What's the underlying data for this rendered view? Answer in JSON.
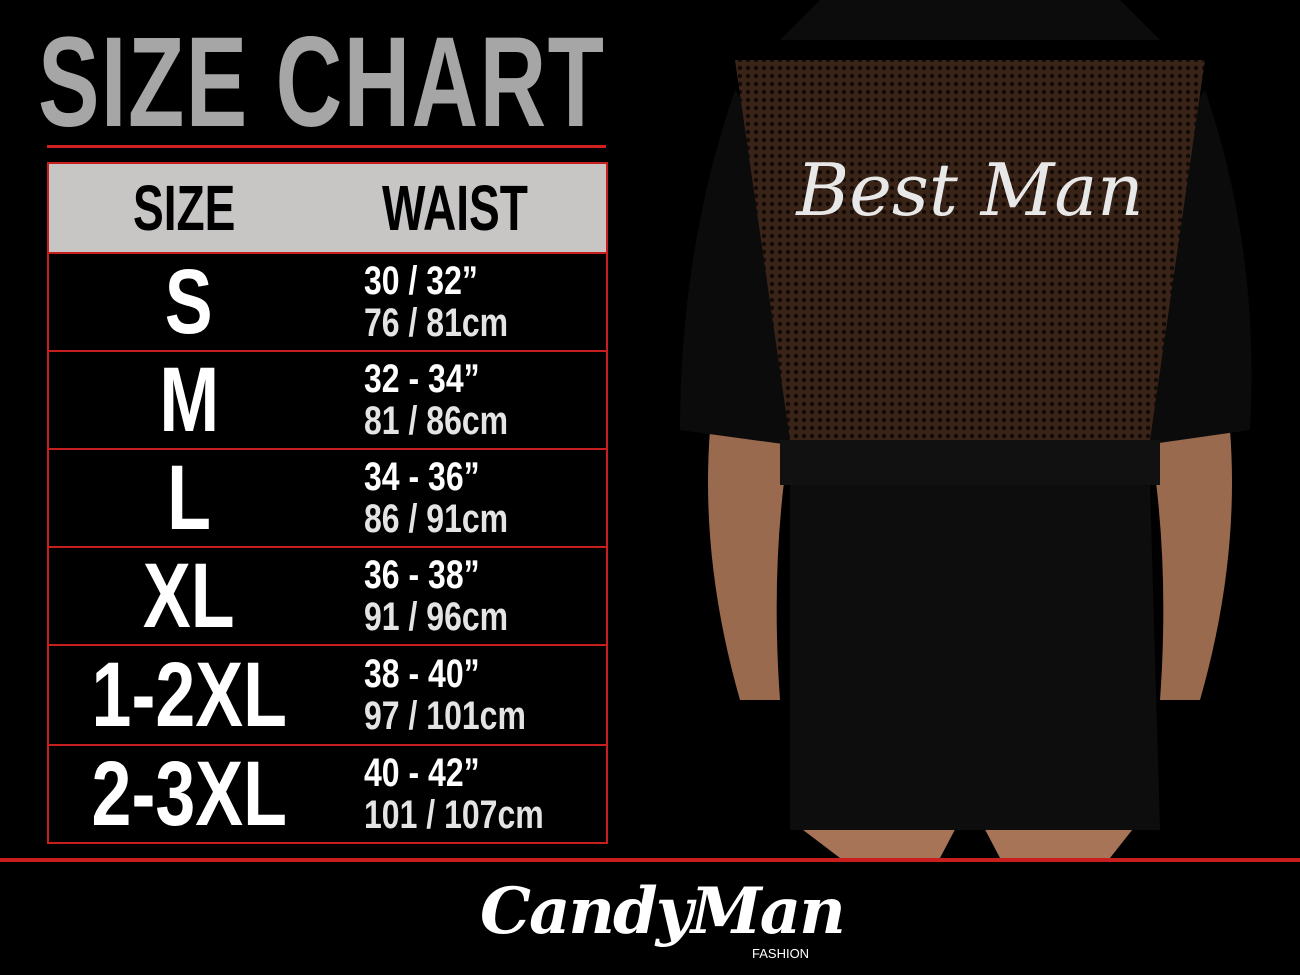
{
  "title": "SIZE CHART",
  "table": {
    "headers": {
      "size": "SIZE",
      "waist": "WAIST"
    },
    "rows": [
      {
        "size": "S",
        "inches": "30 / 32”",
        "cm": "76 / 81cm"
      },
      {
        "size": "M",
        "inches": "32 - 34”",
        "cm": "81 / 86cm"
      },
      {
        "size": "L",
        "inches": "34 - 36”",
        "cm": "86 / 91cm"
      },
      {
        "size": "XL",
        "inches": "36 - 38”",
        "cm": "91 / 96cm"
      },
      {
        "size": "1-2XL",
        "inches": "38 - 40”",
        "cm": "97 / 101cm"
      },
      {
        "size": "2-3XL",
        "inches": "40 - 42”",
        "cm": "101 / 107cm"
      }
    ]
  },
  "product_print": "Best Man",
  "logo": {
    "brand": "CandyMan",
    "sub": "FASHION"
  },
  "colors": {
    "accent": "#c81e1e",
    "header_bg": "#c8c5c5",
    "title": "#a6a6a6",
    "background": "#000000"
  }
}
